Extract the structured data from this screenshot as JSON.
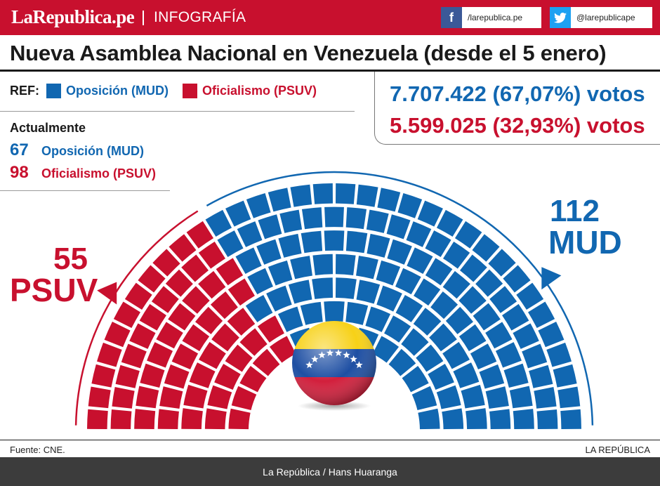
{
  "header": {
    "brand": "LaRepublica.pe",
    "section": "INFOGRAFÍA",
    "facebook": {
      "icon": "facebook-icon",
      "handle": "/larepublica.pe"
    },
    "twitter": {
      "icon": "twitter-icon",
      "handle": "@larepublicape"
    }
  },
  "title": "Nueva Asamblea Nacional en Venezuela (desde el 5 enero)",
  "legend": {
    "ref_label": "REF:",
    "opposition": "Oposición (MUD)",
    "officialism": "Oficialismo (PSUV)"
  },
  "currently": {
    "heading": "Actualmente",
    "opposition": {
      "seats": "67",
      "name": "Oposición (MUD)"
    },
    "officialism": {
      "seats": "98",
      "name": "Oficialismo (PSUV)"
    }
  },
  "votes": {
    "opposition": "7.707.422 (67,07%) votos",
    "officialism": "5.599.025 (32,93%) votos"
  },
  "parliament": {
    "total_seats": 167,
    "psuv": {
      "seats": 55,
      "seats_label": "55",
      "name": "PSUV",
      "color": "#c8102e"
    },
    "mud": {
      "seats": 112,
      "seats_label": "112",
      "name": "MUD",
      "color": "#1167b1"
    },
    "center_icon": "venezuela-flag-icon"
  },
  "footer": {
    "source": "Fuente: CNE.",
    "publisher": "LA REPÚBLICA",
    "credit_outlet": "La República",
    "credit_separator": "/",
    "credit_author": "Hans Huaranga"
  }
}
